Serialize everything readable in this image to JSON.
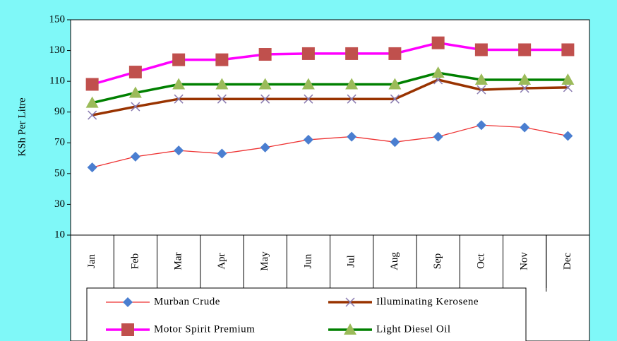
{
  "chart_data": {
    "type": "line",
    "y_label": "KSh Per Litre",
    "categories": [
      "Jan",
      "Feb",
      "Mar",
      "Apr",
      "May",
      "Jun",
      "Jul",
      "Aug",
      "Sep",
      "Oct",
      "Nov",
      "Dec"
    ],
    "series": [
      {
        "name": "Murban Crude",
        "color": "#ee3333",
        "marker_color": "#4a7ed0",
        "marker": "diamond",
        "values": [
          54,
          61,
          65,
          63,
          67,
          72,
          74,
          70.5,
          74,
          81.5,
          80,
          74.5
        ]
      },
      {
        "name": "Illuminating Kerosene",
        "color": "#993300",
        "marker_color": "#8a7bb0",
        "marker": "x",
        "values": [
          88,
          93.5,
          98.5,
          98.5,
          98.5,
          98.5,
          98.5,
          98.5,
          111,
          104.5,
          105.5,
          106
        ]
      },
      {
        "name": "Motor Spirit Premium",
        "color": "#ff00ff",
        "marker_color": "#c0504d",
        "marker": "square",
        "values": [
          108,
          116,
          124,
          124,
          127.5,
          128,
          128,
          128,
          135,
          130.5,
          130.5,
          130.5
        ]
      },
      {
        "name": "Light Diesel Oil",
        "color": "#008000",
        "marker_color": "#9bbb59",
        "marker": "triangle",
        "values": [
          96,
          102.5,
          108,
          108,
          108,
          108,
          108,
          108,
          115.5,
          111,
          111,
          111
        ]
      }
    ],
    "ylim": [
      10,
      150
    ],
    "yticks": [
      10,
      30,
      50,
      70,
      90,
      110,
      130,
      150
    ]
  }
}
